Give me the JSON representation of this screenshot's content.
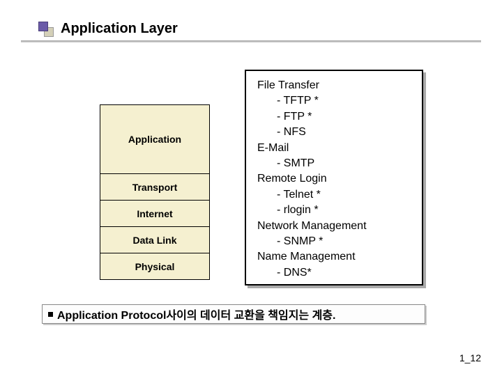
{
  "title": "Application Layer",
  "layers": {
    "items": [
      {
        "name": "Application",
        "class": "application"
      },
      {
        "name": "Transport",
        "class": "other"
      },
      {
        "name": "Internet",
        "class": "other"
      },
      {
        "name": "Data Link",
        "class": "other"
      },
      {
        "name": "Physical",
        "class": "other"
      }
    ],
    "box_bg": "#f5f0d0",
    "border_color": "#000000"
  },
  "protocols": {
    "groups": [
      {
        "label": "File Transfer",
        "items": [
          "- TFTP *",
          "- FTP *",
          "- NFS"
        ]
      },
      {
        "label": "E-Mail",
        "items": [
          "- SMTP"
        ]
      },
      {
        "label": "Remote Login",
        "items": [
          "- Telnet *",
          "- rlogin *"
        ]
      },
      {
        "label": "Network Management",
        "items": [
          "- SNMP *"
        ]
      },
      {
        "label": "Name Management",
        "items": [
          "- DNS*"
        ]
      }
    ],
    "border_color": "#000000",
    "bg": "#ffffff"
  },
  "caption": "Application Protocol사이의 데이터 교환을 책임지는 계층.",
  "page_number": "1_12",
  "colors": {
    "title_bullet_1": "#6b5ba8",
    "title_bullet_2": "#d4d0b8",
    "shadow": "#aaaaaa"
  }
}
